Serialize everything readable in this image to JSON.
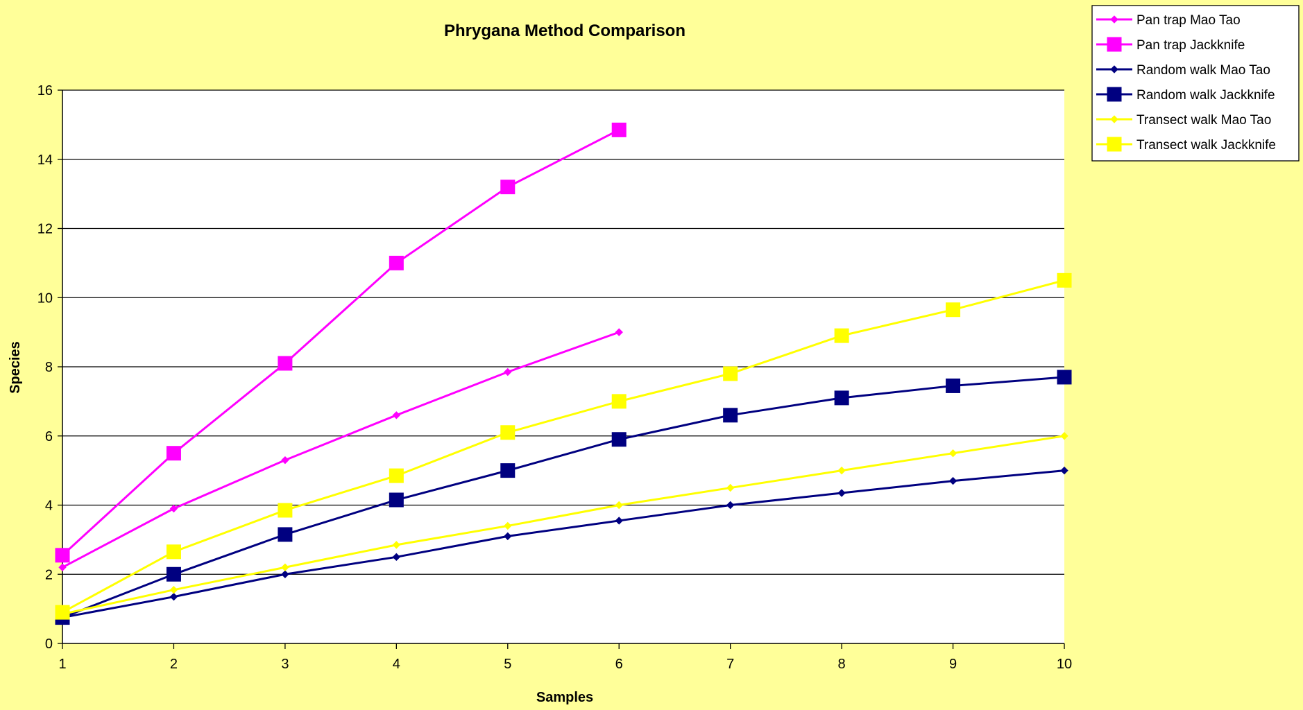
{
  "chart_data": {
    "type": "line",
    "title": "Phrygana Method Comparison",
    "xlabel": "Samples",
    "ylabel": "Species",
    "x": [
      1,
      2,
      3,
      4,
      5,
      6,
      7,
      8,
      9,
      10
    ],
    "xlim": [
      1,
      10
    ],
    "ylim": [
      0,
      16
    ],
    "yticks": [
      0,
      2,
      4,
      6,
      8,
      10,
      12,
      14,
      16
    ],
    "grid": "horizontal",
    "legend_position": "top-right",
    "plot_background": "#ffffff",
    "series": [
      {
        "name": "Pan trap Mao Tao",
        "color": "#ff00ff",
        "marker": "diamond",
        "values": [
          2.2,
          3.9,
          5.3,
          6.6,
          7.85,
          9.0,
          null,
          null,
          null,
          null
        ]
      },
      {
        "name": "Pan trap Jackknife",
        "color": "#ff00ff",
        "marker": "square",
        "values": [
          2.55,
          5.5,
          8.1,
          11.0,
          13.2,
          14.85,
          null,
          null,
          null,
          null
        ]
      },
      {
        "name": "Random walk Mao Tao",
        "color": "#000080",
        "marker": "diamond",
        "values": [
          0.75,
          1.35,
          2.0,
          2.5,
          3.1,
          3.55,
          4.0,
          4.35,
          4.7,
          5.0
        ]
      },
      {
        "name": "Random walk Jackknife",
        "color": "#000080",
        "marker": "square",
        "values": [
          0.75,
          2.0,
          3.15,
          4.15,
          5.0,
          5.9,
          6.6,
          7.1,
          7.45,
          7.7
        ]
      },
      {
        "name": "Transect walk Mao Tao",
        "color": "#ffff00",
        "marker": "diamond",
        "values": [
          0.85,
          1.55,
          2.2,
          2.85,
          3.4,
          4.0,
          4.5,
          5.0,
          5.5,
          6.0
        ]
      },
      {
        "name": "Transect walk Jackknife",
        "color": "#ffff00",
        "marker": "square",
        "values": [
          0.9,
          2.65,
          3.85,
          4.85,
          6.1,
          7.0,
          7.8,
          8.9,
          9.65,
          10.5
        ]
      }
    ]
  }
}
